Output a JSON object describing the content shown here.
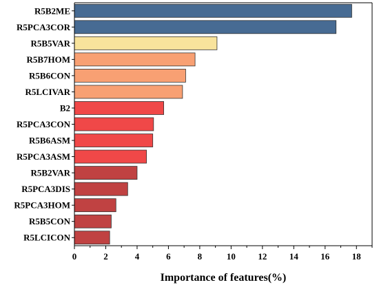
{
  "chart_data": {
    "type": "bar",
    "orientation": "horizontal",
    "title": "",
    "xlabel": "Importance of features(%)",
    "ylabel": "",
    "xlim": [
      0,
      19
    ],
    "xticks": [
      "0",
      "2",
      "4",
      "6",
      "8",
      "10",
      "12",
      "14",
      "16",
      "18"
    ],
    "grid": false,
    "categories": [
      "R5B2ME",
      "R5PCA3COR",
      "R5B5VAR",
      "R5B7HOM",
      "R5B6CON",
      "R5LCIVAR",
      "B2",
      "R5PCA3CON",
      "R5B6ASM",
      "R5PCA3ASM",
      "R5B2VAR",
      "R5PCA3DIS",
      "R5PCA3HOM",
      "R5B5CON",
      "R5LCICON"
    ],
    "values": [
      17.7,
      16.7,
      9.1,
      7.7,
      7.1,
      6.9,
      5.7,
      5.05,
      5.0,
      4.6,
      4.0,
      3.4,
      2.65,
      2.35,
      2.25
    ],
    "colors": [
      "#476b93",
      "#476b93",
      "#f8e39c",
      "#f8a073",
      "#f8a073",
      "#f8a073",
      "#f04848",
      "#f04848",
      "#f04848",
      "#f04848",
      "#c04242",
      "#c04242",
      "#c04242",
      "#c04242",
      "#c04242"
    ]
  }
}
